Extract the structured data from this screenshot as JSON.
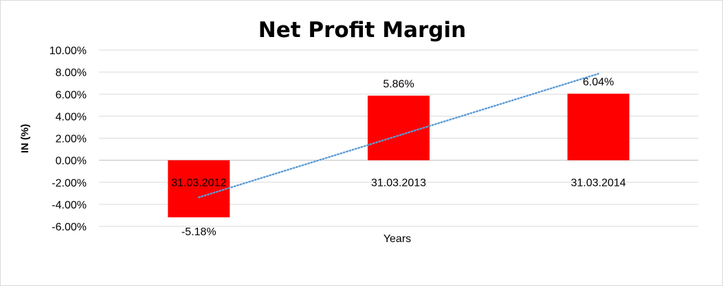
{
  "chart_data": {
    "type": "bar",
    "title": "Net Profit Margin",
    "xlabel": "Years",
    "ylabel": "IN (%)",
    "categories": [
      "31.03.2012",
      "31.03.2013",
      "31.03.2014"
    ],
    "series": [
      {
        "values": [
          -5.18,
          5.86,
          6.04
        ],
        "data_labels": [
          "-5.18%",
          "5.86%",
          "6.04%"
        ],
        "color": "#ff0000"
      }
    ],
    "trendline": {
      "type": "linear",
      "color": "#5b9bd5",
      "style": "dotted"
    },
    "ylim": [
      -6,
      10
    ],
    "ytick_step": 2,
    "ytick_labels": [
      "-6.00%",
      "-4.00%",
      "-2.00%",
      "0.00%",
      "2.00%",
      "4.00%",
      "6.00%",
      "8.00%",
      "10.00%"
    ],
    "grid": true,
    "legend": "none"
  }
}
